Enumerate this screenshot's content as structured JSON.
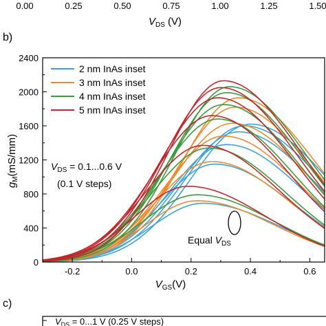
{
  "top_strip": {
    "ticks": [
      "0.00",
      "0.25",
      "0.50",
      "0.75",
      "1.00",
      "1.25",
      "1.50"
    ],
    "xlabel_main": "V",
    "xlabel_sub": "DS",
    "xlabel_unit": " (V)"
  },
  "chart_data": {
    "type": "line",
    "panel_label": "b)",
    "xlabel_main": "V",
    "xlabel_sub": "GS",
    "xlabel_unit": "(V)",
    "ylabel_main": "g",
    "ylabel_sub": "M",
    "ylabel_unit": "(mS/mm)",
    "xlim": [
      -0.3,
      0.65
    ],
    "ylim": [
      0,
      2400
    ],
    "xticks": [
      -0.2,
      0.0,
      0.2,
      0.4,
      0.6
    ],
    "xtick_labels": [
      "-0.2",
      "0.0",
      "0.2",
      "0.4",
      "0.6"
    ],
    "yticks": [
      0,
      400,
      800,
      1200,
      1600,
      2000,
      2400
    ],
    "ytick_labels": [
      "0",
      "400",
      "800",
      "1200",
      "1600",
      "2000",
      "2400"
    ],
    "grid": false,
    "legend_position": "top-left",
    "legend": [
      {
        "label": "2 nm InAs inset",
        "color": "#3ba3d8"
      },
      {
        "label": "3 nm InAs inset",
        "color": "#f08a2e"
      },
      {
        "label": "4 nm InAs inset",
        "color": "#3b9a3a"
      },
      {
        "label": "5 nm InAs inset",
        "color": "#c1272d"
      }
    ],
    "annotations": {
      "vds_main": "V",
      "vds_sub": "DS",
      "vds_rest": " = 0.1...0.6 V",
      "steps": "(0.1 V steps)",
      "equal_main": "Equal ",
      "equal_v": "V",
      "equal_sub": "DS"
    },
    "series": [
      {
        "color": "#3ba3d8",
        "vth": -0.14,
        "peak_x": 0.24,
        "peak_y": 690
      },
      {
        "color": "#3ba3d8",
        "vth": -0.12,
        "peak_x": 0.28,
        "peak_y": 1150
      },
      {
        "color": "#3ba3d8",
        "vth": -0.1,
        "peak_x": 0.32,
        "peak_y": 1380
      },
      {
        "color": "#3ba3d8",
        "vth": -0.08,
        "peak_x": 0.36,
        "peak_y": 1530
      },
      {
        "color": "#3ba3d8",
        "vth": -0.06,
        "peak_x": 0.38,
        "peak_y": 1600
      },
      {
        "color": "#3ba3d8",
        "vth": -0.04,
        "peak_x": 0.4,
        "peak_y": 1620
      },
      {
        "color": "#f08a2e",
        "vth": -0.16,
        "peak_x": 0.22,
        "peak_y": 720
      },
      {
        "color": "#f08a2e",
        "vth": -0.14,
        "peak_x": 0.27,
        "peak_y": 1180
      },
      {
        "color": "#f08a2e",
        "vth": -0.12,
        "peak_x": 0.31,
        "peak_y": 1480
      },
      {
        "color": "#f08a2e",
        "vth": -0.1,
        "peak_x": 0.34,
        "peak_y": 1630
      },
      {
        "color": "#f08a2e",
        "vth": -0.08,
        "peak_x": 0.35,
        "peak_y": 1820
      },
      {
        "color": "#f08a2e",
        "vth": -0.06,
        "peak_x": 0.36,
        "peak_y": 1930
      },
      {
        "color": "#3b9a3a",
        "vth": -0.18,
        "peak_x": 0.22,
        "peak_y": 790
      },
      {
        "color": "#3b9a3a",
        "vth": -0.16,
        "peak_x": 0.26,
        "peak_y": 1340
      },
      {
        "color": "#3b9a3a",
        "vth": -0.14,
        "peak_x": 0.29,
        "peak_y": 1680
      },
      {
        "color": "#3b9a3a",
        "vth": -0.12,
        "peak_x": 0.31,
        "peak_y": 1850
      },
      {
        "color": "#3b9a3a",
        "vth": -0.1,
        "peak_x": 0.32,
        "peak_y": 1990
      },
      {
        "color": "#3b9a3a",
        "vth": -0.08,
        "peak_x": 0.33,
        "peak_y": 2060
      },
      {
        "color": "#c1272d",
        "vth": -0.2,
        "peak_x": 0.19,
        "peak_y": 890
      },
      {
        "color": "#c1272d",
        "vth": -0.18,
        "peak_x": 0.24,
        "peak_y": 1370
      },
      {
        "color": "#c1272d",
        "vth": -0.16,
        "peak_x": 0.27,
        "peak_y": 1720
      },
      {
        "color": "#c1272d",
        "vth": -0.14,
        "peak_x": 0.29,
        "peak_y": 1930
      },
      {
        "color": "#c1272d",
        "vth": -0.12,
        "peak_x": 0.3,
        "peak_y": 2050
      },
      {
        "color": "#c1272d",
        "vth": -0.1,
        "peak_x": 0.31,
        "peak_y": 2130
      }
    ]
  },
  "next_panel": {
    "label": "c)",
    "text_main": "V",
    "text_sub": "DS",
    "text_rest": " = 0...1 V (0.25 V steps)"
  }
}
